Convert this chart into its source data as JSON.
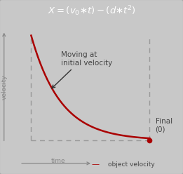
{
  "title_formula": "$X = (v_0{\\ast}t) - (d{\\ast}t^2)$",
  "title_bg": "#6e6e6e",
  "title_color": "#ffffff",
  "chart_bg": "#e0e0e0",
  "outer_bg": "#c8c8c8",
  "curve_color": "#aa0000",
  "dashed_color": "#999999",
  "annotation_text": "Moving at\ninitial velocity",
  "final_label": "Final\n(0)",
  "xlabel": "time",
  "ylabel": "velocity",
  "legend_label": "object velocity",
  "dot_color": "#aa0000",
  "arrow_color": "#888888",
  "text_color": "#444444",
  "border_color": "#aaaaaa",
  "font_size_title": 9.5,
  "font_size_annotation": 7.5,
  "font_size_axis": 6.5,
  "font_size_legend": 6.5,
  "font_size_final": 7.5
}
